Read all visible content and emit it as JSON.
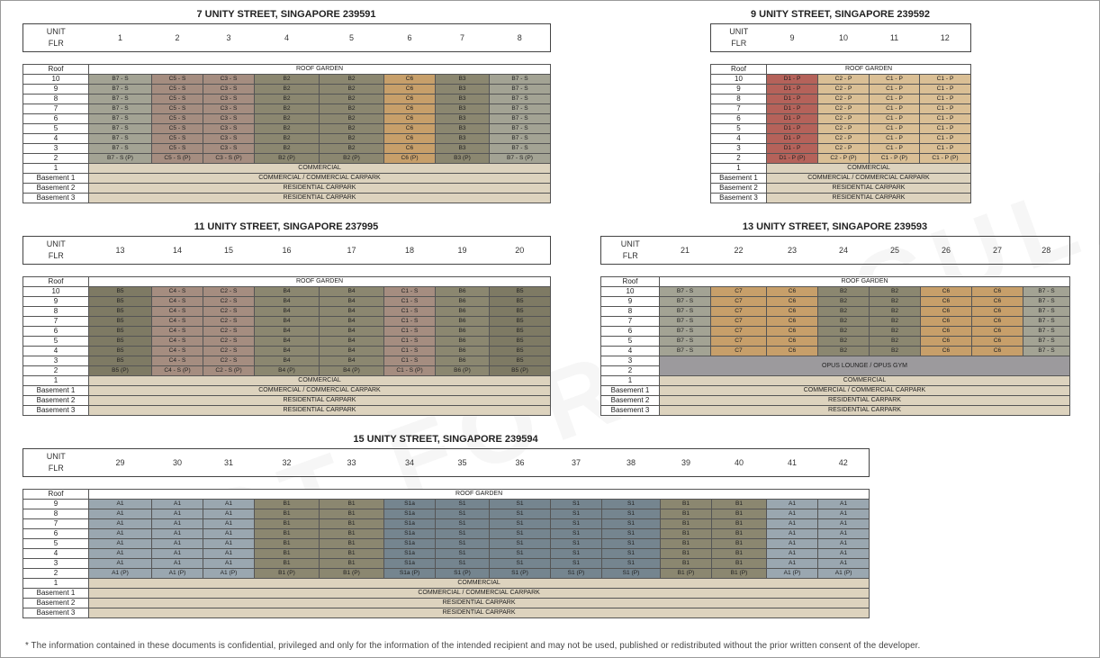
{
  "watermark": "NOT FOR CIRCULATION",
  "footnote": "* The  information  contained  in  these  documents  is  confidential,  privileged  and  only  for  the  information of the intended recipient and may not be used, published or redistributed without the prior written consent of the developer.",
  "labels": {
    "unit": "UNIT",
    "flr": "FLR",
    "roof": "Roof",
    "roof_garden": "ROOF GARDEN",
    "commercial": "COMMERCIAL",
    "b1": "COMMERCIAL / COMMERCIAL CARPARK",
    "b2": "RESIDENTIAL CARPARK",
    "b3": "RESIDENTIAL CARPARK",
    "basement1": "Basement 1",
    "basement2": "Basement 2",
    "basement3": "Basement 3",
    "opus": "OPUS LOUNGE / OPUS GYM"
  },
  "colors": {
    "B7": "#a3a394",
    "C5": "#a58d80",
    "C3": "#a58d80",
    "C4": "#a58d80",
    "C2": "#a58d80",
    "B2": "#8b8770",
    "C6": "#c79f6a",
    "C7": "#c79f6a",
    "B3": "#8b8770",
    "D1": "#b5625a",
    "C2P": "#dabf95",
    "C1P": "#dabf95",
    "B5": "#7e7a64",
    "B4": "#8b8770",
    "C1": "#a58d80",
    "B6": "#8b8770",
    "A1": "#9aa7b0",
    "B1": "#8b8770",
    "S1a": "#75858f",
    "S1": "#75858f"
  },
  "buildings": [
    {
      "title": "7 UNITY STREET, SINGAPORE 239591",
      "floors": [
        "10",
        "9",
        "8",
        "7",
        "6",
        "5",
        "4",
        "3",
        "2"
      ],
      "units": [
        "1",
        "2",
        "3",
        "4",
        "5",
        "6",
        "7",
        "8"
      ],
      "cols": [
        {
          "t": "B7",
          "s": "B7 - S",
          "p": "B7 - S (P)"
        },
        {
          "t": "C5",
          "s": "C5 - S",
          "p": "C5 - S (P)"
        },
        {
          "t": "C3",
          "s": "C3 - S",
          "p": "C3 - S (P)"
        },
        {
          "t": "B2",
          "s": "B2",
          "p": "B2 (P)"
        },
        {
          "t": "B2",
          "s": "B2",
          "p": "B2 (P)"
        },
        {
          "t": "C6",
          "s": "C6",
          "p": "C6 (P)"
        },
        {
          "t": "B3",
          "s": "B3",
          "p": "B3 (P)"
        },
        {
          "t": "B7",
          "s": "B7 - S",
          "p": "B7 - S (P)"
        }
      ]
    },
    {
      "title": "9 UNITY STREET, SINGAPORE 239592",
      "floors": [
        "10",
        "9",
        "8",
        "7",
        "6",
        "5",
        "4",
        "3",
        "2"
      ],
      "units": [
        "9",
        "10",
        "11",
        "12"
      ],
      "cols": [
        {
          "t": "D1",
          "s": "D1 - P",
          "p": "D1 - P (P)"
        },
        {
          "t": "C2P",
          "s": "C2 - P",
          "p": "C2 - P (P)"
        },
        {
          "t": "C1P",
          "s": "C1 - P",
          "p": "C1 - P (P)"
        },
        {
          "t": "C1P",
          "s": "C1 - P",
          "p": "C1 - P (P)"
        }
      ]
    },
    {
      "title": "11 UNITY STREET, SINGAPORE 237995",
      "floors": [
        "10",
        "9",
        "8",
        "7",
        "6",
        "5",
        "4",
        "3",
        "2"
      ],
      "units": [
        "13",
        "14",
        "15",
        "16",
        "17",
        "18",
        "19",
        "20"
      ],
      "cols": [
        {
          "t": "B5",
          "s": "B5",
          "p": "B5 (P)"
        },
        {
          "t": "C4",
          "s": "C4 - S",
          "p": "C4 - S (P)"
        },
        {
          "t": "C2",
          "s": "C2 - S",
          "p": "C2 - S (P)"
        },
        {
          "t": "B4",
          "s": "B4",
          "p": "B4 (P)"
        },
        {
          "t": "B4",
          "s": "B4",
          "p": "B4 (P)"
        },
        {
          "t": "C1",
          "s": "C1 - S",
          "p": "C1 - S (P)"
        },
        {
          "t": "B6",
          "s": "B6",
          "p": "B6 (P)"
        },
        {
          "t": "B5",
          "s": "B5",
          "p": "B5 (P)"
        }
      ]
    },
    {
      "title": "13 UNITY STREET, SINGAPORE 239593",
      "floors": [
        "10",
        "9",
        "8",
        "7",
        "6",
        "5",
        "4",
        "3",
        "2"
      ],
      "units": [
        "21",
        "22",
        "23",
        "24",
        "25",
        "26",
        "27",
        "28"
      ],
      "cols": [
        {
          "t": "B7",
          "s": "B7 - S"
        },
        {
          "t": "C7",
          "s": "C7"
        },
        {
          "t": "C6",
          "s": "C6"
        },
        {
          "t": "B2",
          "s": "B2"
        },
        {
          "t": "B2",
          "s": "B2"
        },
        {
          "t": "C6",
          "s": "C6"
        },
        {
          "t": "C6",
          "s": "C6"
        },
        {
          "t": "B7",
          "s": "B7 - S"
        }
      ]
    },
    {
      "title": "15 UNITY STREET, SINGAPORE 239594",
      "floors": [
        "9",
        "8",
        "7",
        "6",
        "5",
        "4",
        "3",
        "2"
      ],
      "units": [
        "29",
        "30",
        "31",
        "32",
        "33",
        "34",
        "35",
        "36",
        "37",
        "38",
        "39",
        "40",
        "41",
        "42"
      ],
      "cols": [
        {
          "t": "A1",
          "s": "A1",
          "p": "A1 (P)"
        },
        {
          "t": "A1",
          "s": "A1",
          "p": "A1 (P)"
        },
        {
          "t": "A1",
          "s": "A1",
          "p": "A1 (P)"
        },
        {
          "t": "B1",
          "s": "B1",
          "p": "B1 (P)"
        },
        {
          "t": "B1",
          "s": "B1",
          "p": "B1 (P)"
        },
        {
          "t": "S1a",
          "s": "S1a",
          "p": "S1a (P)"
        },
        {
          "t": "S1",
          "s": "S1",
          "p": "S1 (P)"
        },
        {
          "t": "S1",
          "s": "S1",
          "p": "S1 (P)"
        },
        {
          "t": "S1",
          "s": "S1",
          "p": "S1 (P)"
        },
        {
          "t": "S1",
          "s": "S1",
          "p": "S1 (P)"
        },
        {
          "t": "B1",
          "s": "B1",
          "p": "B1 (P)"
        },
        {
          "t": "B1",
          "s": "B1",
          "p": "B1 (P)"
        },
        {
          "t": "A1",
          "s": "A1",
          "p": "A1 (P)"
        },
        {
          "t": "A1",
          "s": "A1",
          "p": "A1 (P)"
        }
      ]
    }
  ]
}
